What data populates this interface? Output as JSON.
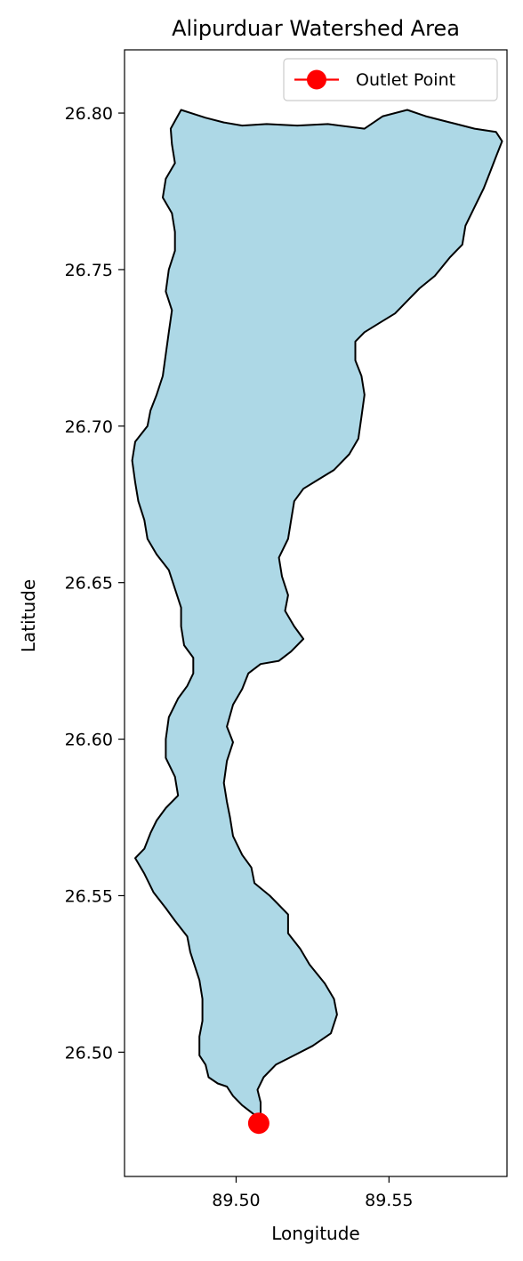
{
  "chart_data": {
    "type": "map",
    "title": "Alipurduar Watershed Area",
    "xlabel": "Longitude",
    "ylabel": "Latitude",
    "xlim": [
      89.4635,
      89.5886
    ],
    "ylim": [
      26.4603,
      26.8202
    ],
    "xticks": [
      89.5,
      89.55
    ],
    "xtick_labels": [
      "89.50",
      "89.55"
    ],
    "yticks": [
      26.5,
      26.55,
      26.6,
      26.65,
      26.7,
      26.75,
      26.8
    ],
    "ytick_labels": [
      "26.50",
      "26.55",
      "26.60",
      "26.65",
      "26.70",
      "26.75",
      "26.80"
    ],
    "grid": false,
    "legend_position": "upper-right",
    "watershed": {
      "fill": "#add8e6",
      "edge": "#000000",
      "boundary_lon_lat": [
        [
          89.4786,
          26.795
        ],
        [
          89.482,
          26.801
        ],
        [
          89.49,
          26.7985
        ],
        [
          89.496,
          26.797
        ],
        [
          89.502,
          26.796
        ],
        [
          89.51,
          26.7965
        ],
        [
          89.52,
          26.796
        ],
        [
          89.53,
          26.7965
        ],
        [
          89.542,
          26.795
        ],
        [
          89.548,
          26.799
        ],
        [
          89.556,
          26.801
        ],
        [
          89.562,
          26.799
        ],
        [
          89.57,
          26.797
        ],
        [
          89.578,
          26.795
        ],
        [
          89.585,
          26.794
        ],
        [
          89.587,
          26.791
        ],
        [
          89.585,
          26.786
        ],
        [
          89.583,
          26.781
        ],
        [
          89.581,
          26.776
        ],
        [
          89.578,
          26.77
        ],
        [
          89.575,
          26.764
        ],
        [
          89.574,
          26.758
        ],
        [
          89.57,
          26.754
        ],
        [
          89.565,
          26.748
        ],
        [
          89.56,
          26.744
        ],
        [
          89.556,
          26.74
        ],
        [
          89.552,
          26.736
        ],
        [
          89.547,
          26.733
        ],
        [
          89.542,
          26.73
        ],
        [
          89.539,
          26.727
        ],
        [
          89.539,
          26.721
        ],
        [
          89.541,
          26.716
        ],
        [
          89.542,
          26.71
        ],
        [
          89.541,
          26.703
        ],
        [
          89.54,
          26.696
        ],
        [
          89.537,
          26.691
        ],
        [
          89.532,
          26.686
        ],
        [
          89.527,
          26.683
        ],
        [
          89.522,
          26.68
        ],
        [
          89.519,
          26.676
        ],
        [
          89.518,
          26.67
        ],
        [
          89.517,
          26.664
        ],
        [
          89.514,
          26.658
        ],
        [
          89.515,
          26.652
        ],
        [
          89.517,
          26.646
        ],
        [
          89.516,
          26.641
        ],
        [
          89.519,
          26.636
        ],
        [
          89.522,
          26.632
        ],
        [
          89.518,
          26.628
        ],
        [
          89.514,
          26.625
        ],
        [
          89.508,
          26.624
        ],
        [
          89.504,
          26.621
        ],
        [
          89.502,
          26.616
        ],
        [
          89.499,
          26.611
        ],
        [
          89.497,
          26.604
        ],
        [
          89.499,
          26.599
        ],
        [
          89.497,
          26.593
        ],
        [
          89.496,
          26.586
        ],
        [
          89.497,
          26.58
        ],
        [
          89.498,
          26.575
        ],
        [
          89.499,
          26.569
        ],
        [
          89.502,
          26.563
        ],
        [
          89.505,
          26.559
        ],
        [
          89.506,
          26.554
        ],
        [
          89.511,
          26.55
        ],
        [
          89.514,
          26.547
        ],
        [
          89.517,
          26.544
        ],
        [
          89.517,
          26.538
        ],
        [
          89.521,
          26.533
        ],
        [
          89.524,
          26.528
        ],
        [
          89.529,
          26.522
        ],
        [
          89.532,
          26.517
        ],
        [
          89.533,
          26.512
        ],
        [
          89.531,
          26.506
        ],
        [
          89.525,
          26.502
        ],
        [
          89.519,
          26.499
        ],
        [
          89.513,
          26.496
        ],
        [
          89.509,
          26.492
        ],
        [
          89.507,
          26.488
        ],
        [
          89.508,
          26.484
        ],
        [
          89.508,
          26.48
        ],
        [
          89.506,
          26.48
        ],
        [
          89.502,
          26.483
        ],
        [
          89.499,
          26.486
        ],
        [
          89.497,
          26.489
        ],
        [
          89.494,
          26.49
        ],
        [
          89.491,
          26.492
        ],
        [
          89.49,
          26.496
        ],
        [
          89.488,
          26.499
        ],
        [
          89.488,
          26.505
        ],
        [
          89.489,
          26.51
        ],
        [
          89.489,
          26.517
        ],
        [
          89.488,
          26.523
        ],
        [
          89.486,
          26.529
        ],
        [
          89.485,
          26.532
        ],
        [
          89.484,
          26.537
        ],
        [
          89.48,
          26.542
        ],
        [
          89.477,
          26.546
        ],
        [
          89.473,
          26.551
        ],
        [
          89.47,
          26.557
        ],
        [
          89.467,
          26.562
        ],
        [
          89.47,
          26.565
        ],
        [
          89.472,
          26.57
        ],
        [
          89.474,
          26.574
        ],
        [
          89.477,
          26.578
        ],
        [
          89.481,
          26.582
        ],
        [
          89.48,
          26.588
        ],
        [
          89.477,
          26.594
        ],
        [
          89.477,
          26.6
        ],
        [
          89.478,
          26.607
        ],
        [
          89.481,
          26.613
        ],
        [
          89.484,
          26.617
        ],
        [
          89.486,
          26.621
        ],
        [
          89.486,
          26.626
        ],
        [
          89.483,
          26.63
        ],
        [
          89.482,
          26.636
        ],
        [
          89.482,
          26.642
        ],
        [
          89.48,
          26.648
        ],
        [
          89.478,
          26.654
        ],
        [
          89.474,
          26.659
        ],
        [
          89.471,
          26.664
        ],
        [
          89.47,
          26.67
        ],
        [
          89.468,
          26.676
        ],
        [
          89.467,
          26.682
        ],
        [
          89.466,
          26.689
        ],
        [
          89.467,
          26.695
        ],
        [
          89.471,
          26.7
        ],
        [
          89.472,
          26.705
        ],
        [
          89.474,
          26.71
        ],
        [
          89.476,
          26.716
        ],
        [
          89.477,
          26.723
        ],
        [
          89.478,
          26.73
        ],
        [
          89.479,
          26.737
        ],
        [
          89.477,
          26.743
        ],
        [
          89.478,
          26.75
        ],
        [
          89.48,
          26.756
        ],
        [
          89.48,
          26.762
        ],
        [
          89.479,
          26.768
        ],
        [
          89.476,
          26.773
        ],
        [
          89.477,
          26.779
        ],
        [
          89.48,
          26.784
        ],
        [
          89.479,
          26.79
        ]
      ]
    },
    "series": [
      {
        "name": "Outlet Point",
        "type": "point",
        "color": "#ff0000",
        "x": [
          89.5074
        ],
        "y": [
          26.4773
        ]
      }
    ]
  }
}
